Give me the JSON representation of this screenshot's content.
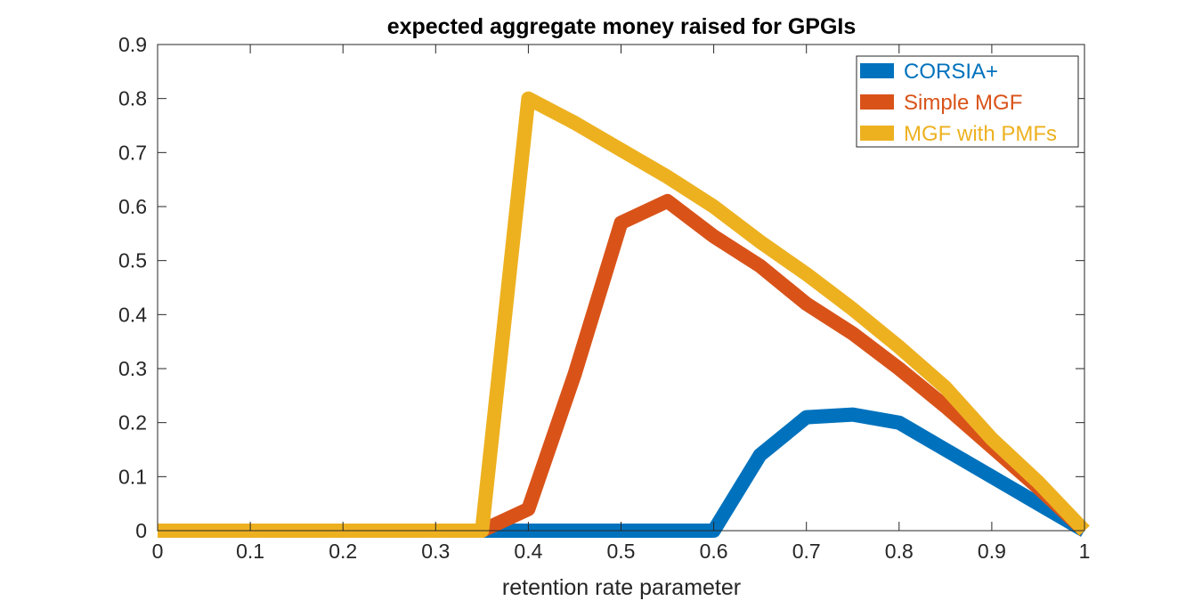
{
  "chart_data": {
    "type": "line",
    "title": "expected aggregate money raised for GPGIs",
    "xlabel": "retention rate parameter",
    "ylabel": "",
    "xlim": [
      0,
      1
    ],
    "ylim": [
      0,
      0.9
    ],
    "xticks": [
      0,
      0.1,
      0.2,
      0.3,
      0.4,
      0.5,
      0.6,
      0.7,
      0.8,
      0.9,
      1
    ],
    "xtick_labels": [
      "0",
      "0.1",
      "0.2",
      "0.3",
      "0.4",
      "0.5",
      "0.6",
      "0.7",
      "0.8",
      "0.9",
      "1"
    ],
    "yticks": [
      0,
      0.1,
      0.2,
      0.3,
      0.4,
      0.5,
      0.6,
      0.7,
      0.8,
      0.9
    ],
    "ytick_labels": [
      "0",
      "0.1",
      "0.2",
      "0.3",
      "0.4",
      "0.5",
      "0.6",
      "0.7",
      "0.8",
      "0.9"
    ],
    "grid": false,
    "legend_position": "top-right",
    "series": [
      {
        "name": "CORSIA+",
        "color": "#0072BD",
        "x": [
          0,
          0.05,
          0.1,
          0.15,
          0.2,
          0.25,
          0.3,
          0.35,
          0.4,
          0.45,
          0.5,
          0.55,
          0.6,
          0.65,
          0.7,
          0.75,
          0.8,
          0.85,
          0.9,
          0.95,
          1
        ],
        "y": [
          0,
          0,
          0,
          0,
          0,
          0,
          0,
          0,
          0,
          0,
          0,
          0,
          0,
          0.14,
          0.21,
          0.215,
          0.2,
          0.15,
          0.1,
          0.05,
          0
        ]
      },
      {
        "name": "Simple MGF",
        "color": "#D95319",
        "x": [
          0,
          0.05,
          0.1,
          0.15,
          0.2,
          0.25,
          0.3,
          0.35,
          0.4,
          0.45,
          0.5,
          0.55,
          0.6,
          0.65,
          0.7,
          0.75,
          0.8,
          0.85,
          0.9,
          0.95,
          1
        ],
        "y": [
          0,
          0,
          0,
          0,
          0,
          0,
          0,
          0,
          0.04,
          0.29,
          0.57,
          0.61,
          0.545,
          0.49,
          0.42,
          0.365,
          0.3,
          0.23,
          0.155,
          0.08,
          0
        ]
      },
      {
        "name": "MGF with PMFs",
        "color": "#EDB120",
        "x": [
          0,
          0.05,
          0.1,
          0.15,
          0.2,
          0.25,
          0.3,
          0.35,
          0.4,
          0.45,
          0.5,
          0.55,
          0.6,
          0.65,
          0.7,
          0.75,
          0.8,
          0.85,
          0.9,
          0.95,
          1
        ],
        "y": [
          0,
          0,
          0,
          0,
          0,
          0,
          0,
          0,
          0.8,
          0.755,
          0.705,
          0.655,
          0.6,
          0.535,
          0.475,
          0.41,
          0.34,
          0.265,
          0.17,
          0.09,
          0
        ]
      }
    ]
  }
}
